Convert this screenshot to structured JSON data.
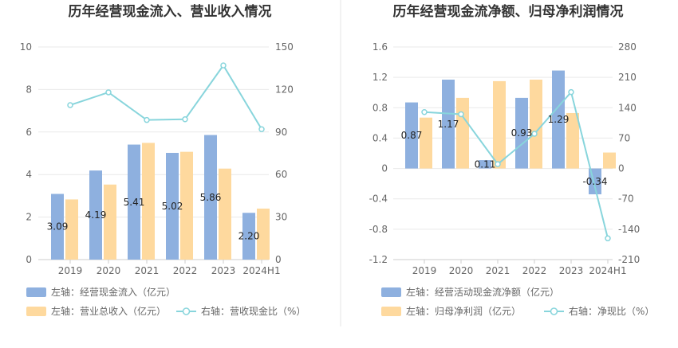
{
  "colors": {
    "blue": "#8eb0df",
    "orange": "#fed99e",
    "teal": "#88d5dc",
    "grid": "#e9e9e9",
    "divider": "#e6e6e6"
  },
  "chart_data": [
    {
      "type": "bar",
      "title": "历年经营现金流入、营业收入情况",
      "categories": [
        "2019",
        "2020",
        "2021",
        "2022",
        "2023",
        "2024H1"
      ],
      "y_left": {
        "min": 0,
        "max": 10,
        "ticks": [
          "0",
          "2",
          "4",
          "6",
          "8",
          "10"
        ]
      },
      "y_right": {
        "min": 0,
        "max": 150,
        "ticks": [
          "0",
          "30",
          "60",
          "90",
          "120",
          "150"
        ]
      },
      "series": [
        {
          "name": "左轴：经营现金流入（亿元）",
          "type": "bar",
          "axis": "left",
          "color": "#8eb0df",
          "values": [
            3.09,
            4.19,
            5.41,
            5.02,
            5.86,
            2.2
          ],
          "labels": [
            "3.09",
            "4.19",
            "5.41",
            "5.02",
            "5.86",
            "2.20"
          ]
        },
        {
          "name": "左轴：营业总收入（亿元）",
          "type": "bar",
          "axis": "left",
          "color": "#fed99e",
          "values": [
            2.83,
            3.53,
            5.49,
            5.07,
            4.28,
            2.4
          ]
        },
        {
          "name": "右轴：营收现金比（%）",
          "type": "line",
          "axis": "right",
          "color": "#88d5dc",
          "values": [
            109,
            118,
            98.5,
            99,
            137,
            92
          ]
        }
      ],
      "legend": "bottom-left"
    },
    {
      "type": "bar",
      "title": "历年经营现金流净额、归母净利润情况",
      "categories": [
        "2019",
        "2020",
        "2021",
        "2022",
        "2023",
        "2024H1"
      ],
      "y_left": {
        "min": -1.2,
        "max": 1.6,
        "ticks": [
          "-1.2",
          "-0.8",
          "-0.4",
          "0",
          "0.4",
          "0.8",
          "1.2",
          "1.6"
        ]
      },
      "y_right": {
        "min": -210,
        "max": 280,
        "ticks": [
          "-210",
          "-140",
          "-70",
          "0",
          "70",
          "140",
          "210",
          "280"
        ]
      },
      "series": [
        {
          "name": "左轴：经营活动现金流净额（亿元）",
          "type": "bar",
          "axis": "left",
          "color": "#8eb0df",
          "values": [
            0.87,
            1.17,
            0.11,
            0.93,
            1.29,
            -0.34
          ],
          "labels": [
            "0.87",
            "1.17",
            "0.11",
            "0.93",
            "1.29",
            "-0.34"
          ]
        },
        {
          "name": "左轴：归母净利润（亿元）",
          "type": "bar",
          "axis": "left",
          "color": "#fed99e",
          "values": [
            0.67,
            0.93,
            1.15,
            1.17,
            0.73,
            0.21
          ]
        },
        {
          "name": "右轴：净现比（%）",
          "type": "line",
          "axis": "right",
          "color": "#88d5dc",
          "values": [
            130,
            125,
            10,
            80,
            176,
            -161
          ]
        }
      ],
      "legend": "bottom-left"
    }
  ]
}
